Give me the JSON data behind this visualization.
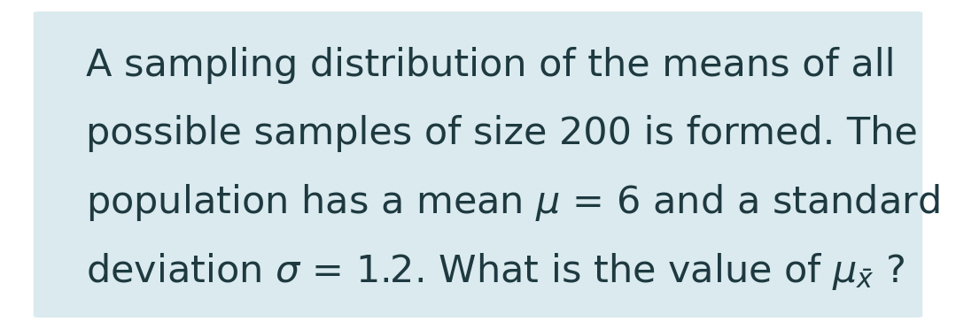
{
  "background_color": "#ffffff",
  "card_color": "#daeaee",
  "text_color": "#1e3a40",
  "font_size": 31,
  "fig_width": 10.79,
  "fig_height": 3.72,
  "dpi": 100,
  "line1": "A sampling distribution of the means of all",
  "line2": "possible samples of size 200 is formed. The",
  "line3": "population has a mean $\\mu$ = 6 and a standard",
  "line4": "deviation $\\sigma$ = 1.2. What is the value of $\\mu_{\\bar{x}}$ ?"
}
